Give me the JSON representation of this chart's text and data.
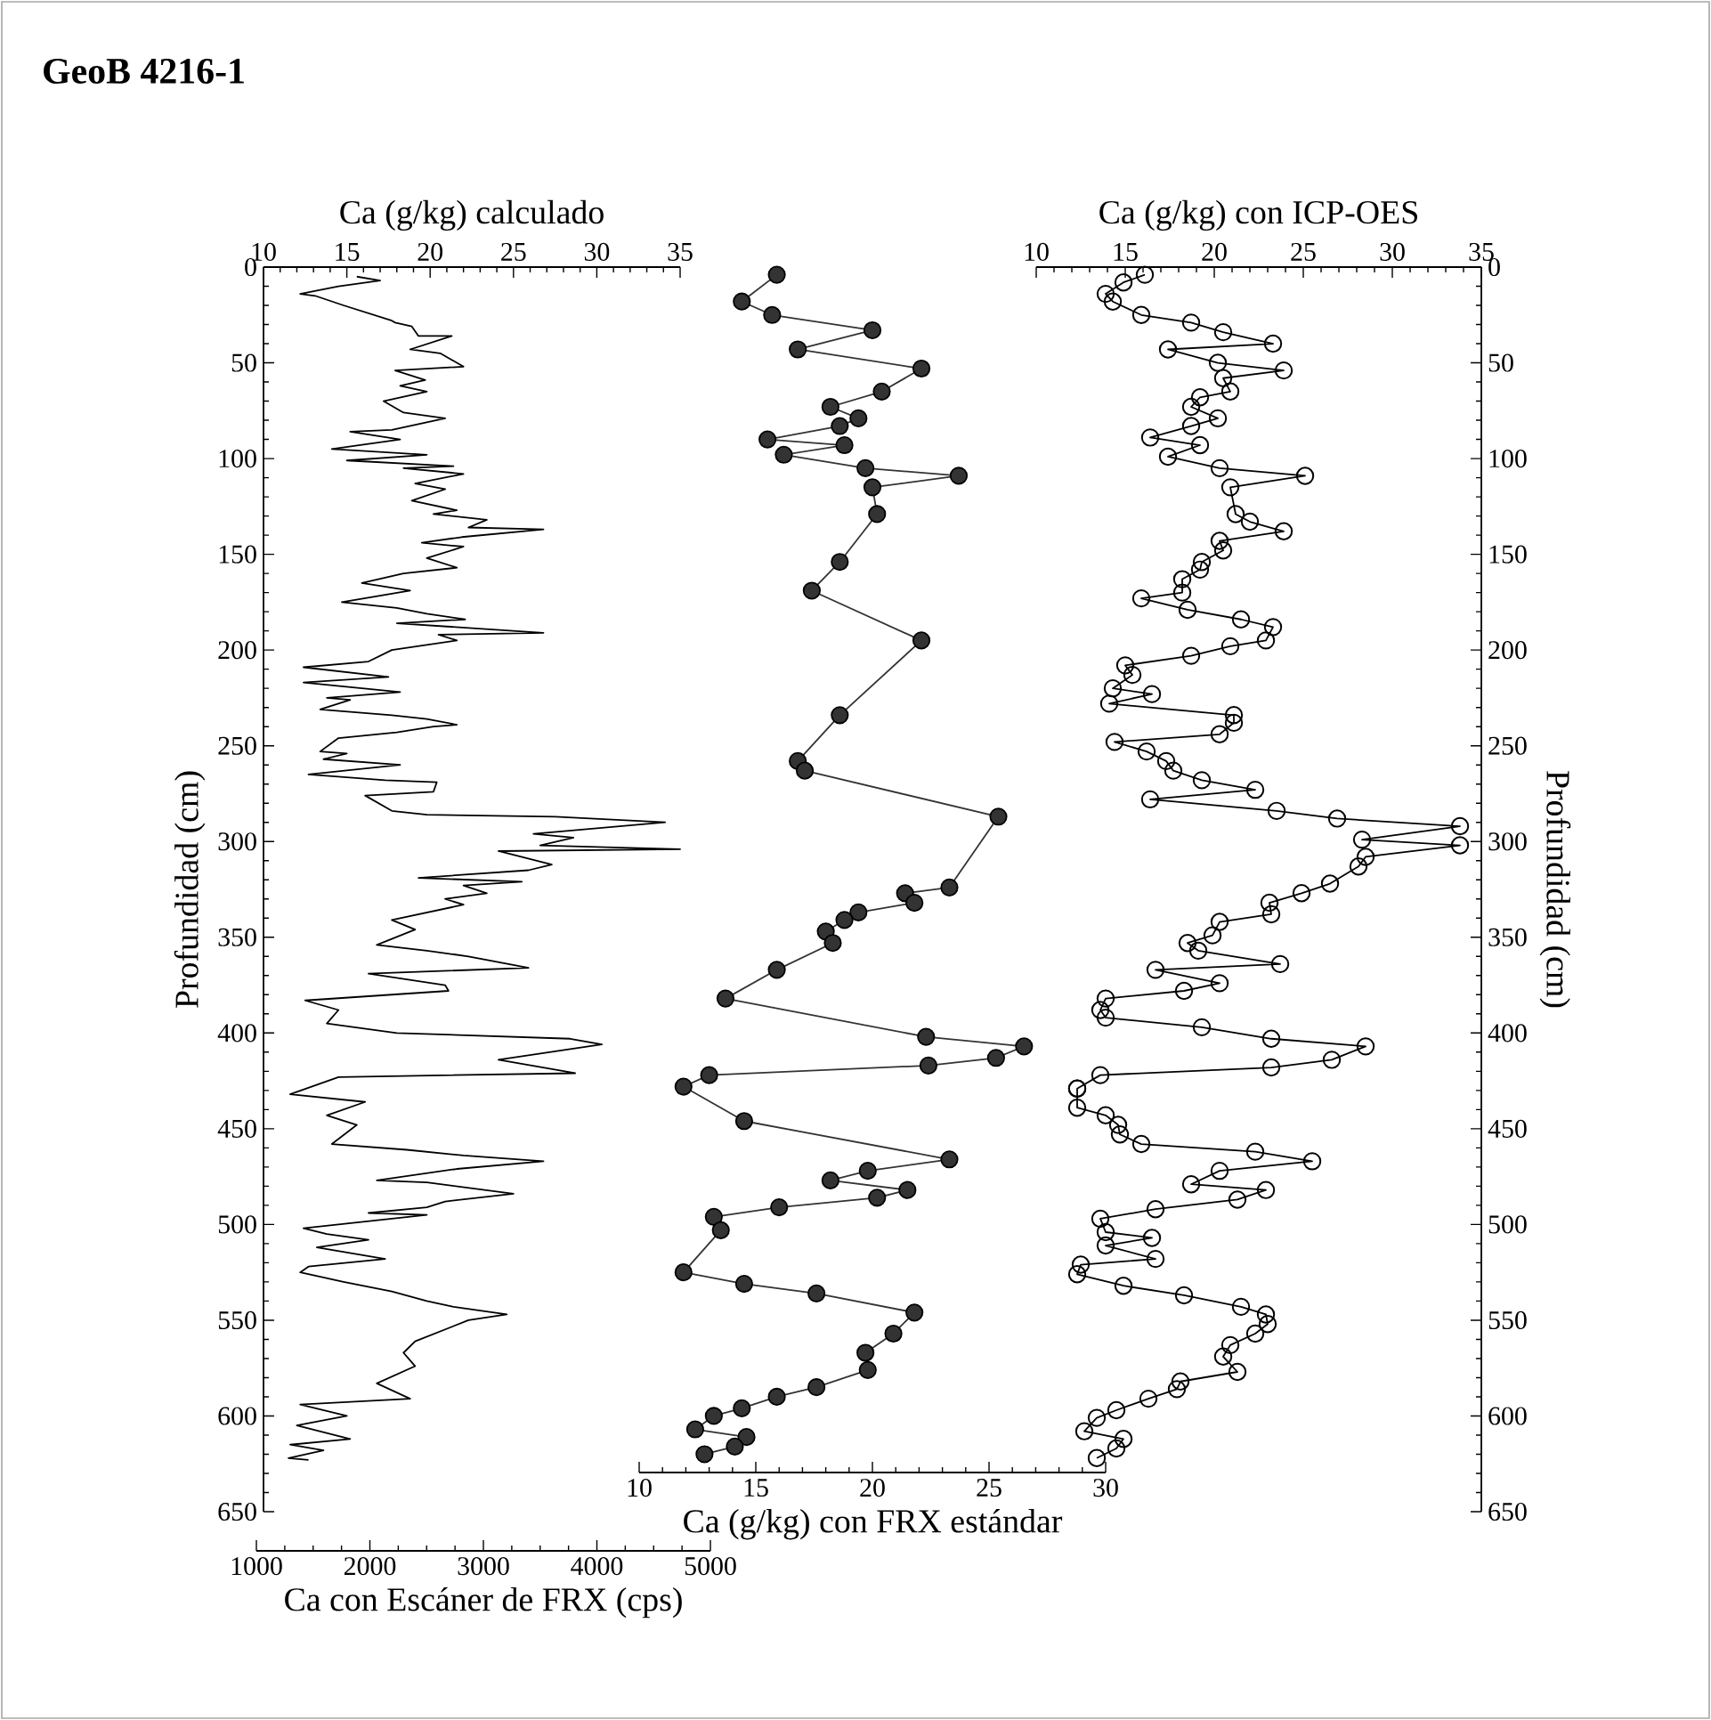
{
  "chart_data": [
    {
      "type": "line",
      "title": "GeoB 4216-1",
      "xlabel": "Ca con Escáner de FRX (cps)",
      "x2label": "Ca (g/kg) calculado",
      "ylabel": "Profundidad (cm)",
      "xlim": [
        1000,
        5000
      ],
      "xticks": [
        1000,
        2000,
        3000,
        4000,
        5000
      ],
      "x2lim": [
        10,
        35
      ],
      "x2ticks": [
        10,
        15,
        20,
        25,
        30,
        35
      ],
      "ylim": [
        650,
        0
      ],
      "yticks": [
        0,
        50,
        100,
        150,
        200,
        250,
        300,
        350,
        400,
        450,
        500,
        550,
        600,
        650
      ],
      "marker": "none",
      "line_style": "solid",
      "series": [
        {
          "color": "#000000",
          "axis": "x2",
          "x": [
            15.6,
            17.0,
            14.5,
            12.2,
            13.1,
            14.8,
            17.7,
            17.9,
            18.9,
            19.3,
            21.3,
            18.8,
            20.6,
            22.0,
            17.9,
            19.7,
            18.2,
            19.8,
            17.2,
            18.4,
            20.9,
            17.7,
            15.2,
            18.2,
            14.1,
            19.8,
            15.0,
            21.4,
            18.4,
            22.0,
            19.1,
            20.9,
            18.9,
            21.6,
            20.2,
            23.4,
            22.3,
            26.8,
            21.9,
            19.5,
            22.0,
            19.8,
            21.6,
            18.4,
            15.9,
            18.8,
            14.7,
            18.0,
            19.8,
            22.1,
            18.0,
            26.8,
            20.5,
            21.6,
            17.7,
            16.3,
            12.4,
            17.5,
            12.4,
            18.2,
            13.8,
            15.2,
            13.4,
            17.7,
            19.8,
            21.6,
            20.2,
            18.0,
            14.5,
            13.4,
            15.0,
            13.6,
            18.2,
            12.7,
            17.3,
            20.4,
            20.2,
            16.1,
            17.7,
            19.8,
            27.5,
            34.1,
            26.2,
            28.6,
            26.6,
            35.0,
            24.1,
            27.3,
            25.9,
            19.3,
            25.5,
            22.0,
            23.4,
            20.9,
            22.0,
            17.7,
            19.1,
            16.8,
            19.8,
            22.3,
            25.9,
            16.3,
            20.9,
            21.1,
            12.5,
            14.5,
            13.8,
            18.0,
            28.4,
            30.3,
            24.1,
            28.7,
            14.5,
            11.6,
            16.1,
            13.8,
            15.6,
            14.1,
            18.6,
            22.0,
            26.8,
            21.6,
            16.8,
            19.8,
            25.0,
            20.9,
            19.8,
            16.3,
            19.8,
            12.4,
            13.8,
            16.3,
            13.2,
            17.3,
            12.7,
            12.2,
            14.8,
            17.7,
            19.8,
            21.4,
            24.6,
            22.3,
            19.1,
            18.4,
            19.1,
            16.8,
            18.8,
            12.2,
            15.0,
            12.0,
            15.2,
            11.6,
            13.6,
            11.5,
            12.7
          ],
          "values": [
            5,
            7,
            10,
            14,
            15,
            20,
            28,
            29,
            31,
            36,
            36,
            43,
            45,
            52,
            54,
            59,
            62,
            65,
            70,
            76,
            79,
            85,
            86,
            90,
            95,
            98,
            101,
            104,
            105,
            108,
            113,
            116,
            122,
            127,
            129,
            132,
            136,
            137,
            141,
            144,
            146,
            152,
            157,
            160,
            165,
            169,
            175,
            178,
            181,
            184,
            186,
            191,
            192,
            195,
            200,
            206,
            209,
            214,
            217,
            222,
            225,
            226,
            231,
            234,
            236,
            239,
            240,
            243,
            246,
            253,
            254,
            257,
            260,
            265,
            268,
            269,
            274,
            276,
            284,
            286,
            287,
            290,
            296,
            298,
            302,
            304,
            305,
            312,
            315,
            319,
            321,
            323,
            327,
            330,
            333,
            341,
            346,
            354,
            357,
            360,
            366,
            369,
            375,
            378,
            383,
            388,
            395,
            400,
            403,
            406,
            414,
            421,
            423,
            432,
            436,
            443,
            448,
            458,
            461,
            464,
            467,
            471,
            477,
            478,
            484,
            488,
            491,
            494,
            495,
            502,
            505,
            508,
            512,
            518,
            522,
            525,
            530,
            535,
            540,
            543,
            547,
            550,
            561,
            567,
            574,
            583,
            591,
            594,
            600,
            605,
            612,
            615,
            618,
            622,
            623
          ]
        }
      ]
    },
    {
      "type": "line",
      "xlabel": "Ca (g/kg) con FRX estándar",
      "xlim": [
        10,
        30
      ],
      "xticks": [
        10,
        15,
        20,
        25,
        30
      ],
      "ylim": [
        650,
        0
      ],
      "tick_labels": "x",
      "marker": "circle",
      "line_style": "solid",
      "series": [
        {
          "color": "#333333",
          "x": [
            15.9,
            14.4,
            15.7,
            20.0,
            16.8,
            22.1,
            20.4,
            18.2,
            19.4,
            18.6,
            15.5,
            18.8,
            16.2,
            19.7,
            23.7,
            20.0,
            20.2,
            18.6,
            17.4,
            22.1,
            18.6,
            16.8,
            17.1,
            25.4,
            23.3,
            21.4,
            21.8,
            19.4,
            18.8,
            18.0,
            18.3,
            15.9,
            13.7,
            22.3,
            26.5,
            25.3,
            22.4,
            13.0,
            11.9,
            14.5,
            23.3,
            19.8,
            18.2,
            21.5,
            20.2,
            16.0,
            13.2,
            13.5,
            11.9,
            14.5,
            17.6,
            21.8,
            20.9,
            19.7,
            19.8,
            17.6,
            15.9,
            14.4,
            13.2,
            12.4,
            14.6,
            14.1,
            12.8
          ],
          "values": [
            4,
            18,
            25,
            33,
            43,
            53,
            65,
            73,
            79,
            83,
            90,
            93,
            98,
            105,
            109,
            115,
            129,
            154,
            169,
            195,
            234,
            258,
            263,
            287,
            324,
            327,
            332,
            337,
            341,
            347,
            353,
            367,
            382,
            402,
            407,
            413,
            417,
            422,
            428,
            446,
            466,
            472,
            477,
            482,
            486,
            491,
            496,
            503,
            525,
            531,
            536,
            546,
            557,
            567,
            576,
            585,
            590,
            596,
            600,
            607,
            611,
            616,
            620
          ]
        }
      ]
    },
    {
      "type": "line",
      "xlabel": "Ca (g/kg) con ICP-OES",
      "ylabel": "Profundidad (cm)",
      "xlim": [
        10,
        35
      ],
      "xticks": [
        10,
        15,
        20,
        25,
        30,
        35
      ],
      "ylim": [
        650,
        0
      ],
      "yticks": [
        0,
        50,
        100,
        150,
        200,
        250,
        300,
        350,
        400,
        450,
        500,
        550,
        600,
        650
      ],
      "marker": "circle",
      "line_style": "solid",
      "series": [
        {
          "color": "#000000",
          "x": [
            16.1,
            14.9,
            13.9,
            14.3,
            15.9,
            18.7,
            20.5,
            23.3,
            17.4,
            20.2,
            23.9,
            20.5,
            20.9,
            19.2,
            18.7,
            20.2,
            18.7,
            16.4,
            19.2,
            17.4,
            20.3,
            25.1,
            20.9,
            21.2,
            22.0,
            23.9,
            20.3,
            20.5,
            19.3,
            19.2,
            18.2,
            18.2,
            15.9,
            18.5,
            21.5,
            23.3,
            22.9,
            20.9,
            18.7,
            15.0,
            15.4,
            14.3,
            16.5,
            14.1,
            21.1,
            21.1,
            20.3,
            14.4,
            16.2,
            17.3,
            17.7,
            19.3,
            22.3,
            16.4,
            23.5,
            26.9,
            33.8,
            28.3,
            33.8,
            28.5,
            28.1,
            26.5,
            24.9,
            23.1,
            23.2,
            20.3,
            19.9,
            18.5,
            19.1,
            23.7,
            16.7,
            20.3,
            18.3,
            13.9,
            13.6,
            13.9,
            19.3,
            23.2,
            28.5,
            26.6,
            23.2,
            13.6,
            12.3,
            12.3,
            12.3,
            13.9,
            14.6,
            14.7,
            15.9,
            22.3,
            25.5,
            20.3,
            18.7,
            22.9,
            21.3,
            16.7,
            13.6,
            13.9,
            16.5,
            13.9,
            16.7,
            12.5,
            12.3,
            14.9,
            18.3,
            21.5,
            22.9,
            23.0,
            22.3,
            20.9,
            20.5,
            21.3,
            18.1,
            17.9,
            16.3,
            14.5,
            13.4,
            12.7,
            14.9,
            14.5,
            13.4
          ],
          "values": [
            4,
            8,
            14,
            18,
            25,
            29,
            34,
            40,
            43,
            50,
            54,
            58,
            65,
            68,
            73,
            79,
            83,
            89,
            93,
            99,
            105,
            109,
            115,
            129,
            133,
            138,
            143,
            148,
            154,
            158,
            163,
            170,
            173,
            179,
            184,
            188,
            195,
            198,
            203,
            208,
            213,
            220,
            223,
            228,
            234,
            238,
            244,
            248,
            253,
            258,
            263,
            268,
            273,
            278,
            284,
            288,
            292,
            299,
            302,
            308,
            313,
            322,
            327,
            332,
            338,
            342,
            349,
            353,
            357,
            364,
            367,
            374,
            378,
            382,
            388,
            392,
            397,
            403,
            407,
            414,
            418,
            422,
            429,
            429,
            439,
            443,
            448,
            453,
            458,
            462,
            467,
            472,
            479,
            482,
            487,
            492,
            497,
            504,
            507,
            511,
            518,
            521,
            526,
            532,
            537,
            543,
            547,
            552,
            557,
            563,
            569,
            577,
            582,
            586,
            591,
            597,
            601,
            608,
            612,
            617,
            622
          ]
        }
      ]
    }
  ]
}
